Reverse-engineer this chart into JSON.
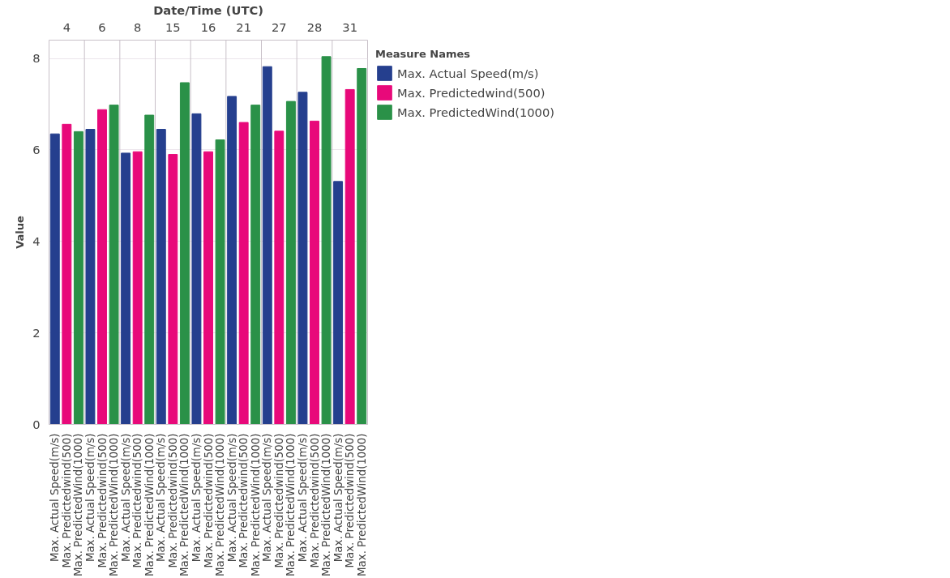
{
  "chart_data": {
    "type": "bar",
    "xlabel": "Date/Time (UTC)",
    "ylabel": "Value",
    "legend_title": "Measure Names",
    "legend": "right",
    "grid": "y",
    "categories": [
      "4",
      "6",
      "8",
      "15",
      "16",
      "21",
      "27",
      "28",
      "31"
    ],
    "ylim": [
      0,
      8.4
    ],
    "yticks": [
      0,
      2,
      4,
      6,
      8
    ],
    "series": [
      {
        "name": "Max. Actual Speed(m/s)",
        "color": "#253f8e",
        "values": [
          6.35,
          6.45,
          5.93,
          6.45,
          6.79,
          7.17,
          7.82,
          7.26,
          5.31
        ]
      },
      {
        "name": "Max. Predictedwind(500)",
        "color": "#e8097a",
        "values": [
          6.56,
          6.88,
          5.96,
          5.9,
          5.96,
          6.6,
          6.41,
          6.63,
          7.32
        ]
      },
      {
        "name": "Max. PredictedWind(1000)",
        "color": "#2a9148",
        "values": [
          6.4,
          6.98,
          6.76,
          7.47,
          6.22,
          6.98,
          7.06,
          8.04,
          7.78
        ]
      }
    ]
  }
}
